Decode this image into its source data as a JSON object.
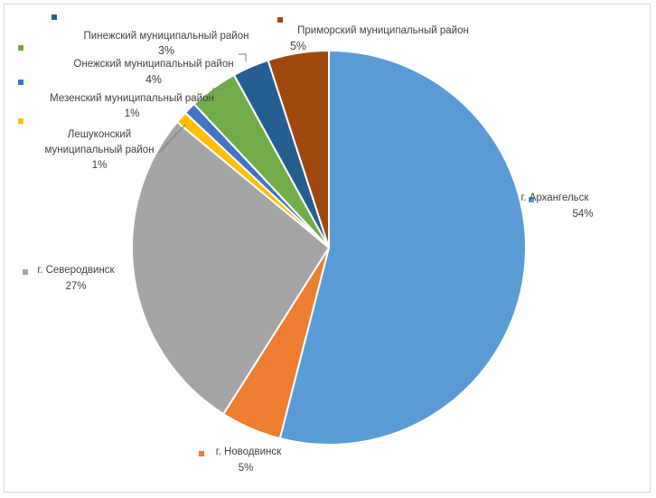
{
  "chart_data": {
    "type": "pie",
    "title": "",
    "legend": "none",
    "slices": [
      {
        "name": "г. Архангельск",
        "value": 54,
        "label": "54%",
        "color": "#5b9bd5"
      },
      {
        "name": "г. Новодвинск",
        "value": 5,
        "label": "5%",
        "color": "#ed7d31"
      },
      {
        "name": "г. Северодвинск",
        "value": 27,
        "label": "27%",
        "color": "#a5a5a5"
      },
      {
        "name": "Лешуконский муниципальный район",
        "value": 1,
        "label": "1%",
        "color": "#ffc000"
      },
      {
        "name": "Мезенский муниципальный район",
        "value": 1,
        "label": "1%",
        "color": "#4472c4"
      },
      {
        "name": "Онежский муниципальный район",
        "value": 4,
        "label": "4%",
        "color": "#70ad47"
      },
      {
        "name": "Пинежский муниципальный район",
        "value": 3,
        "label": "3%",
        "color": "#255e91"
      },
      {
        "name": "Приморский муниципальный район",
        "value": 5,
        "label": "5%",
        "color": "#9e480e"
      }
    ]
  }
}
